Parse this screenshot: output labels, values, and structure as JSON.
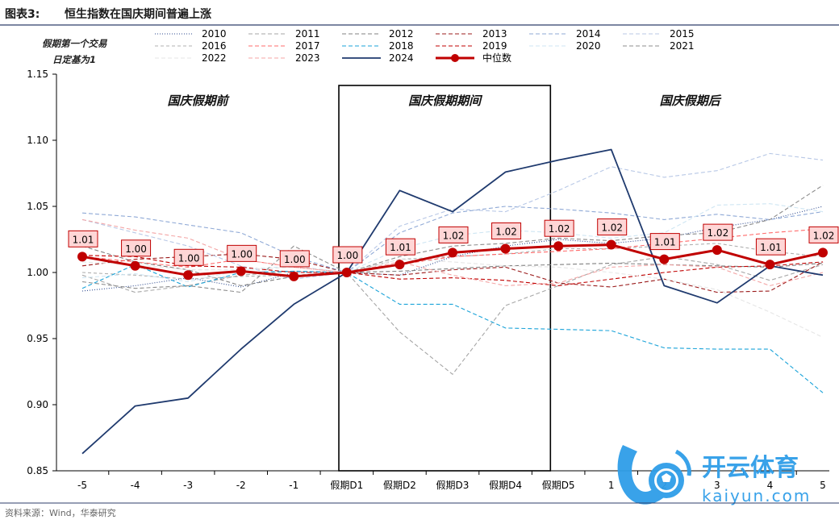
{
  "header": {
    "figure_label": "图表3:",
    "title": "恒生指数在国庆期间普遍上涨"
  },
  "footer": {
    "source": "资料来源：Wind，华泰研究"
  },
  "watermark": {
    "brand": "开云体育",
    "url": "kaiyun.com"
  },
  "colors": {
    "accent": "#1f3a6e",
    "median": "#c00000",
    "label_fill": "#ffd6d6",
    "grid": "#e0e0e0"
  },
  "chart_data": {
    "type": "line",
    "ylabel_note": [
      "假期第一个交易",
      "日定基为1"
    ],
    "categories": [
      "-5",
      "-4",
      "-3",
      "-2",
      "-1",
      "假期D1",
      "假期D2",
      "假期D3",
      "假期D4",
      "假期D5",
      "1",
      "2",
      "3",
      "4",
      "5"
    ],
    "ylim": [
      0.85,
      1.15
    ],
    "yticks": [
      "0.85",
      "0.90",
      "0.95",
      "1.00",
      "1.05",
      "1.10",
      "1.15"
    ],
    "grid": false,
    "legend_position": "top",
    "regions": [
      {
        "label": "国庆假期前",
        "start": 0,
        "end": 4.85
      },
      {
        "label": "国庆假期期间",
        "start": 4.85,
        "end": 8.85,
        "boxed": true
      },
      {
        "label": "国庆假期后",
        "start": 8.85,
        "end": 14
      }
    ],
    "series": [
      {
        "name": "2010",
        "color": "#2e4a8f",
        "dash": "1,2",
        "width": 1.1,
        "values": [
          0.986,
          0.99,
          0.996,
          0.989,
          1.0,
          1.0,
          0.998,
          1.012,
          1.02,
          1.025,
          1.022,
          1.026,
          1.034,
          1.04,
          1.05
        ]
      },
      {
        "name": "2011",
        "color": "#a6a6a6",
        "dash": "5,3",
        "width": 1.1,
        "values": [
          0.998,
          0.985,
          0.99,
          0.998,
          1.001,
          1.0,
          0.955,
          0.923,
          0.975,
          0.99,
          1.006,
          1.012,
          1.006,
          0.994,
          1.006
        ]
      },
      {
        "name": "2012",
        "color": "#808080",
        "dash": "5,3",
        "width": 1.1,
        "values": [
          1.02,
          1.008,
          1.002,
          0.99,
          0.997,
          1.0,
          1.001,
          1.003,
          1.005,
          1.006,
          1.007,
          1.006,
          1.005,
          1.004,
          1.007
        ]
      },
      {
        "name": "2013",
        "color": "#9b1c1c",
        "dash": "5,3",
        "width": 1.1,
        "values": [
          1.005,
          1.01,
          1.012,
          1.014,
          1.01,
          1.0,
          0.998,
          1.002,
          1.004,
          0.992,
          0.989,
          0.995,
          0.985,
          0.986,
          1.008
        ]
      },
      {
        "name": "2014",
        "color": "#8fa9d6",
        "dash": "5,3",
        "width": 1.1,
        "values": [
          1.045,
          1.042,
          1.036,
          1.03,
          1.012,
          1.0,
          1.03,
          1.045,
          1.05,
          1.048,
          1.045,
          1.04,
          1.044,
          1.04,
          1.046
        ]
      },
      {
        "name": "2015",
        "color": "#b8c8e6",
        "dash": "5,3",
        "width": 1.1,
        "values": [
          1.04,
          1.03,
          1.02,
          1.005,
          0.995,
          1.0,
          1.035,
          1.048,
          1.046,
          1.062,
          1.08,
          1.072,
          1.077,
          1.09,
          1.085
        ]
      },
      {
        "name": "2016",
        "color": "#b0b0b0",
        "dash": "4,3",
        "width": 1.1,
        "values": [
          1.0,
          0.998,
          0.995,
          0.997,
          0.998,
          1.0,
          1.01,
          1.012,
          1.014,
          1.018,
          1.018,
          1.02,
          1.022,
          1.016,
          1.012
        ]
      },
      {
        "name": "2017",
        "color": "#ff6b6b",
        "dash": "5,3",
        "width": 1.1,
        "values": [
          1.012,
          1.008,
          1.004,
          1.01,
          1.004,
          1.0,
          1.006,
          1.012,
          1.014,
          1.016,
          1.018,
          1.022,
          1.026,
          1.03,
          1.033
        ]
      },
      {
        "name": "2018",
        "color": "#1aa3d9",
        "dash": "5,3",
        "width": 1.1,
        "values": [
          0.988,
          1.006,
          0.989,
          1.0,
          1.001,
          1.0,
          0.976,
          0.976,
          0.958,
          0.957,
          0.956,
          0.943,
          0.942,
          0.942,
          0.909
        ]
      },
      {
        "name": "2019",
        "color": "#c00000",
        "dash": "5,3",
        "width": 1.1,
        "values": [
          1.013,
          1.012,
          1.005,
          1.004,
          1.0,
          1.0,
          0.995,
          0.996,
          0.994,
          0.99,
          0.995,
          1.0,
          1.004,
          1.005,
          1.008
        ]
      },
      {
        "name": "2020",
        "color": "#cfe6f3",
        "dash": "5,3",
        "width": 1.1,
        "values": [
          0.996,
          0.999,
          0.993,
          1.002,
          1.005,
          1.0,
          1.018,
          1.028,
          1.032,
          1.03,
          1.026,
          1.03,
          1.051,
          1.052,
          1.046
        ]
      },
      {
        "name": "2021",
        "color": "#8c8c8c",
        "dash": "5,3",
        "width": 1.1,
        "values": [
          0.993,
          0.988,
          0.99,
          0.985,
          1.02,
          1.0,
          1.012,
          1.02,
          1.022,
          1.026,
          1.024,
          1.028,
          1.03,
          1.04,
          1.066
        ]
      },
      {
        "name": "2022",
        "color": "#e6e6e6",
        "dash": "5,3",
        "width": 1.1,
        "values": [
          1.008,
          1.006,
          1.002,
          1.002,
          1.004,
          1.0,
          1.01,
          1.008,
          1.005,
          1.004,
          1.0,
          0.995,
          0.987,
          0.97,
          0.951
        ]
      },
      {
        "name": "2023",
        "color": "#f4a6a6",
        "dash": "5,3",
        "width": 1.1,
        "values": [
          1.04,
          1.032,
          1.026,
          1.01,
          1.004,
          1.0,
          1.008,
          0.998,
          0.99,
          0.992,
          1.004,
          1.006,
          1.004,
          0.99,
          1.0
        ]
      },
      {
        "name": "2024",
        "color": "#1f3a6e",
        "dash": "",
        "width": 1.8,
        "values": [
          0.863,
          0.899,
          0.905,
          0.942,
          0.976,
          1.0,
          1.062,
          1.046,
          1.076,
          1.085,
          1.093,
          0.99,
          0.977,
          1.005,
          0.998
        ]
      },
      {
        "name": "中位数",
        "color": "#c00000",
        "dash": "",
        "width": 3,
        "markers": true,
        "labels": true,
        "values": [
          1.012,
          1.005,
          0.998,
          1.001,
          0.997,
          1.0,
          1.006,
          1.015,
          1.018,
          1.02,
          1.021,
          1.01,
          1.017,
          1.006,
          1.015
        ],
        "data_labels": [
          "1.01",
          "1.00",
          "1.00",
          "1.00",
          "1.00",
          "1.00",
          "1.01",
          "1.02",
          "1.02",
          "1.02",
          "1.02",
          "1.01",
          "1.02",
          "1.01",
          "1.02"
        ]
      }
    ]
  }
}
